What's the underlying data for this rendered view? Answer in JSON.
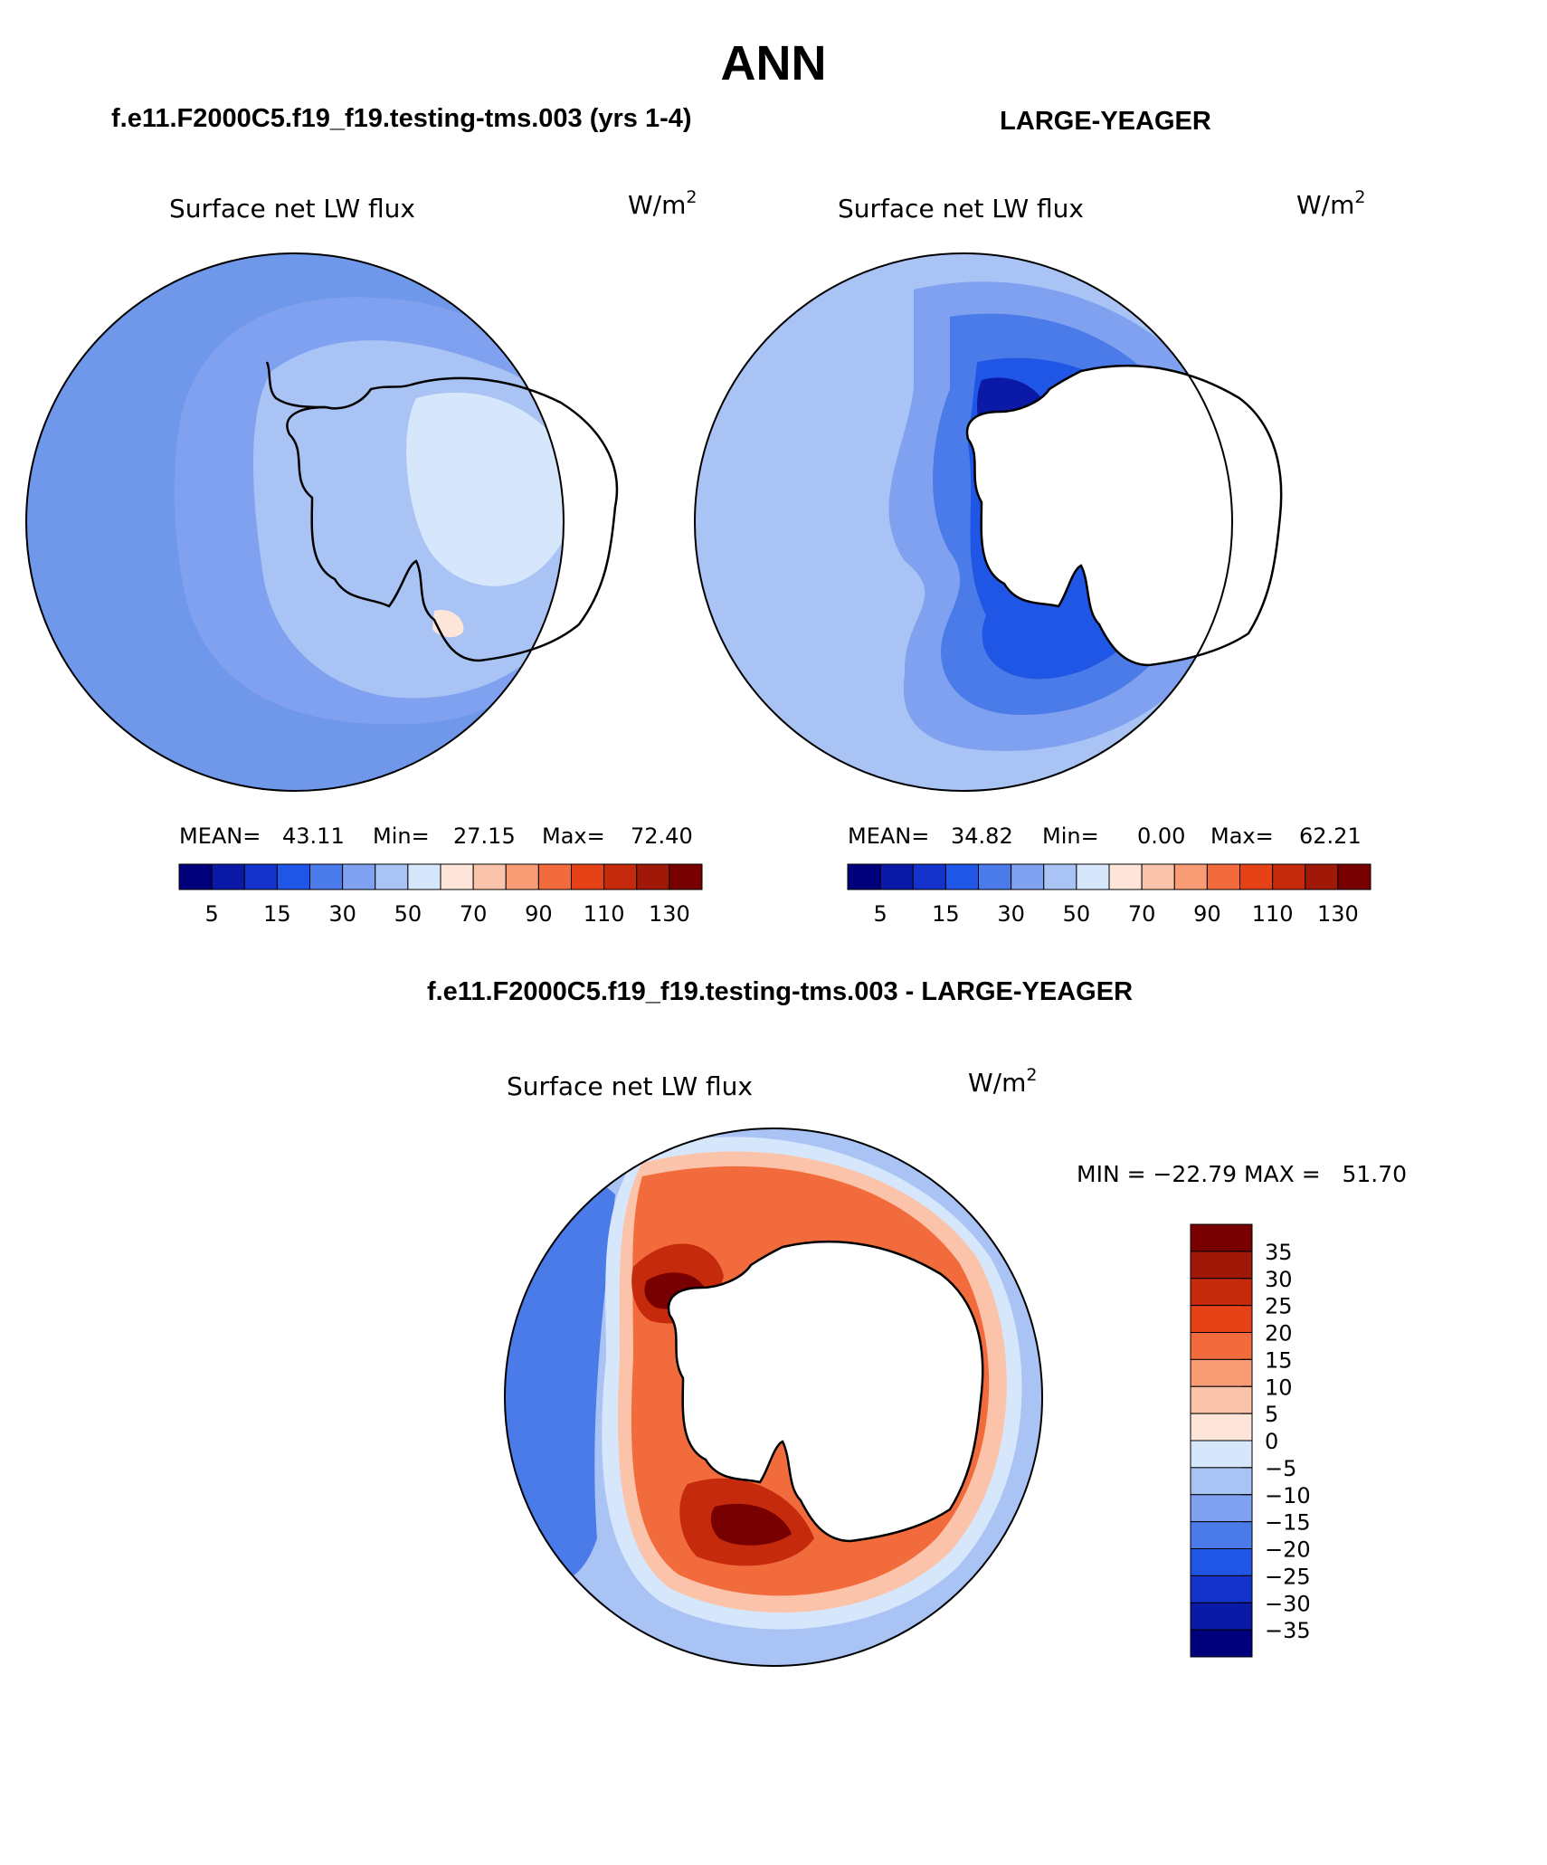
{
  "page_title": "ANN",
  "panels": [
    {
      "case_title": "f.e11.F2000C5.f19_f19.testing-tms.003 (yrs 1-4)",
      "field_label": "Surface net LW flux",
      "units": "W/m",
      "units_exp": "2",
      "stats": {
        "mean_label": "MEAN=",
        "mean": "43.11",
        "min_label": "Min=",
        "min": "27.15",
        "max_label": "Max=",
        "max": "72.40"
      }
    },
    {
      "case_title": "LARGE-YEAGER",
      "field_label": "Surface net LW flux",
      "units": "W/m",
      "units_exp": "2",
      "stats": {
        "mean_label": "MEAN=",
        "mean": "34.82",
        "min_label": "Min=",
        "min": "0.00",
        "max_label": "Max=",
        "max": "62.21"
      }
    }
  ],
  "horizontal_colorbar": {
    "colors": [
      "#00007c",
      "#0a1aa6",
      "#1433cc",
      "#1f56e6",
      "#4a7be8",
      "#7fa1ef",
      "#a9c3f5",
      "#d6e6fb",
      "#fde6d9",
      "#fbc3a9",
      "#f99b75",
      "#f26b3d",
      "#e54218",
      "#c62a0c",
      "#a01808",
      "#780000"
    ],
    "tick_labels": [
      "5",
      "15",
      "30",
      "50",
      "70",
      "90",
      "110",
      "130"
    ]
  },
  "difference_panel": {
    "title": "f.e11.F2000C5.f19_f19.testing-tms.003 - LARGE-YEAGER",
    "field_label": "Surface net LW flux",
    "units": "W/m",
    "units_exp": "2",
    "minmax_text": "MIN = −22.79 MAX =   51.70"
  },
  "vertical_colorbar": {
    "colors": [
      "#780000",
      "#a01808",
      "#c62a0c",
      "#e54218",
      "#f26b3d",
      "#f99b75",
      "#fbc3a9",
      "#fde6d9",
      "#d6e6fb",
      "#a9c3f5",
      "#7fa1ef",
      "#4a7be8",
      "#1f56e6",
      "#1433cc",
      "#0a1aa6",
      "#00007c"
    ],
    "tick_labels": [
      "35",
      "30",
      "25",
      "20",
      "15",
      "10",
      "5",
      "0",
      "−5",
      "−10",
      "−15",
      "−20",
      "−25",
      "−30",
      "−35"
    ]
  }
}
